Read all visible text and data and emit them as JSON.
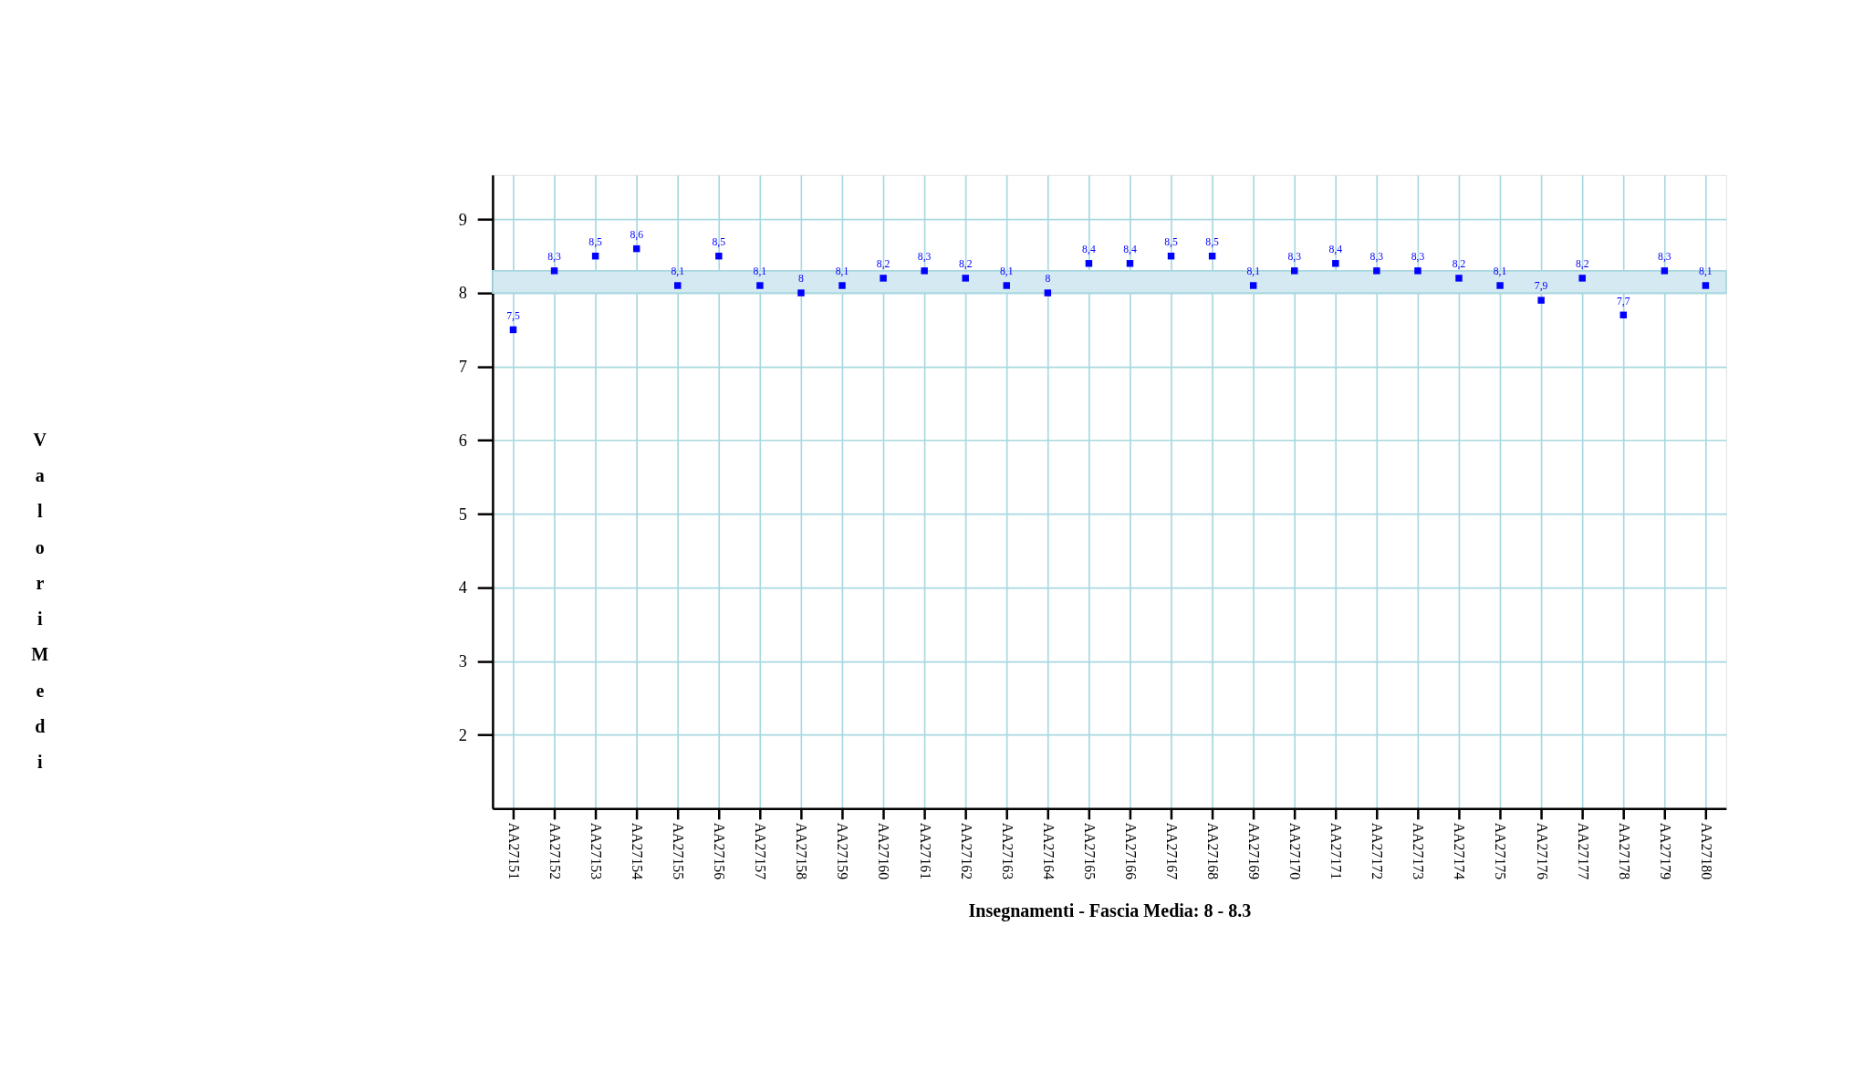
{
  "chart_data": {
    "type": "scatter",
    "xlabel": "Insegnamenti - Fascia Media: 8 - 8.3",
    "ylabel": "Valori Medi",
    "categories": [
      "AA27151",
      "AA27152",
      "AA27153",
      "AA27154",
      "AA27155",
      "AA27156",
      "AA27157",
      "AA27158",
      "AA27159",
      "AA27160",
      "AA27161",
      "AA27162",
      "AA27163",
      "AA27164",
      "AA27165",
      "AA27166",
      "AA27167",
      "AA27168",
      "AA27169",
      "AA27170",
      "AA27171",
      "AA27172",
      "AA27173",
      "AA27174",
      "AA27175",
      "AA27176",
      "AA27177",
      "AA27178",
      "AA27179",
      "AA27180"
    ],
    "series": [
      {
        "color": "#0000ff",
        "values": [
          7.5,
          8.3,
          8.5,
          8.6,
          8.1,
          8.5,
          8.1,
          8,
          8.1,
          8.2,
          8.3,
          8.2,
          8.1,
          8,
          8.4,
          8.4,
          8.5,
          8.5,
          8.1,
          8.3,
          8.4,
          8.3,
          8.3,
          8.2,
          8.1,
          7.9,
          8.2,
          7.7,
          8.3,
          8.1
        ],
        "value_labels": [
          "7,5",
          "8,3",
          "8,5",
          "8,6",
          "8,1",
          "8,5",
          "8,1",
          "8",
          "8,1",
          "8,2",
          "8,3",
          "8,2",
          "8,1",
          "8",
          "8,4",
          "8,4",
          "8,5",
          "8,5",
          "8,1",
          "8,3",
          "8,4",
          "8,3",
          "8,3",
          "8,2",
          "8,1",
          "7,9",
          "8,2",
          "7,7",
          "8,3",
          "8,1"
        ]
      }
    ],
    "ylim": [
      1,
      9.6
    ],
    "yticks": [
      2,
      3,
      4,
      5,
      6,
      7,
      8,
      9
    ],
    "bands": [
      {
        "axis": "y",
        "from": 8,
        "to": 8.3,
        "color": "#d4e9f1"
      }
    ],
    "grid": true,
    "marker": "square"
  }
}
